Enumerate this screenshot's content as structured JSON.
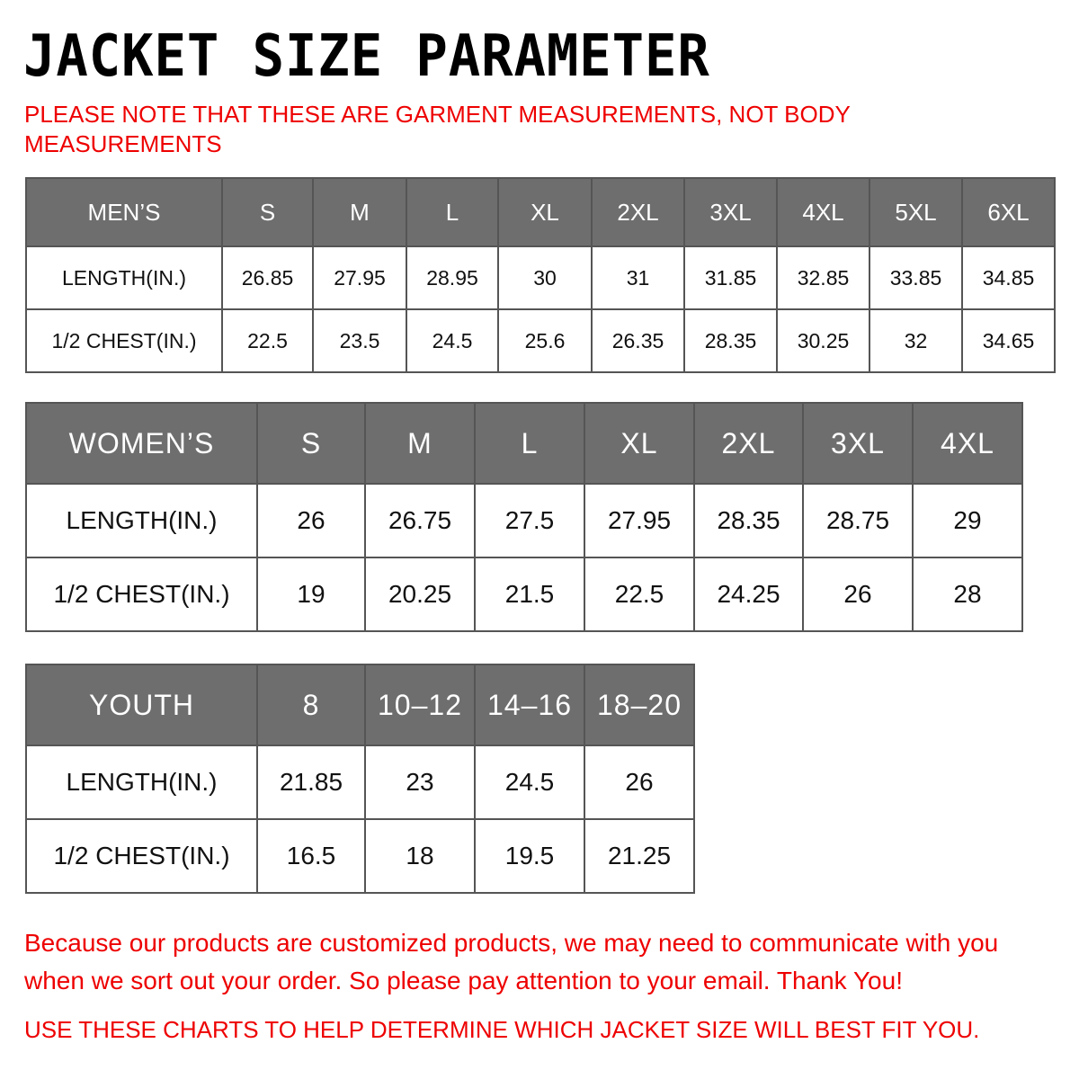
{
  "title": "JACKET SIZE PARAMETER",
  "note": "PLEASE NOTE THAT THESE ARE GARMENT MEASUREMENTS, NOT BODY MEASUREMENTS",
  "mens": {
    "header": [
      "MEN’S",
      "S",
      "M",
      "L",
      "XL",
      "2XL",
      "3XL",
      "4XL",
      "5XL",
      "6XL"
    ],
    "rows": [
      [
        "LENGTH(IN.)",
        "26.85",
        "27.95",
        "28.95",
        "30",
        "31",
        "31.85",
        "32.85",
        "33.85",
        "34.85"
      ],
      [
        "1/2 CHEST(IN.)",
        "22.5",
        "23.5",
        "24.5",
        "25.6",
        "26.35",
        "28.35",
        "30.25",
        "32",
        "34.65"
      ]
    ]
  },
  "womens": {
    "header": [
      "WOMEN’S",
      "S",
      "M",
      "L",
      "XL",
      "2XL",
      "3XL",
      "4XL"
    ],
    "rows": [
      [
        "LENGTH(IN.)",
        "26",
        "26.75",
        "27.5",
        "27.95",
        "28.35",
        "28.75",
        "29"
      ],
      [
        "1/2 CHEST(IN.)",
        "19",
        "20.25",
        "21.5",
        "22.5",
        "24.25",
        "26",
        "28"
      ]
    ]
  },
  "youth": {
    "header": [
      "YOUTH",
      "8",
      "10–12",
      "14–16",
      "18–20"
    ],
    "rows": [
      [
        "LENGTH(IN.)",
        "21.85",
        "23",
        "24.5",
        "26"
      ],
      [
        "1/2 CHEST(IN.)",
        "16.5",
        "18",
        "19.5",
        "21.25"
      ]
    ]
  },
  "footer": "Because our products are customized products, we may need to communicate with you when we sort out your order. So please pay attention to your email. Thank You!",
  "footer2": "USE THESE CHARTS TO HELP DETERMINE WHICH JACKET SIZE WILL BEST FIT YOU.",
  "colors": {
    "accent": "#ee0000",
    "header_bg": "#6e6e6e"
  }
}
